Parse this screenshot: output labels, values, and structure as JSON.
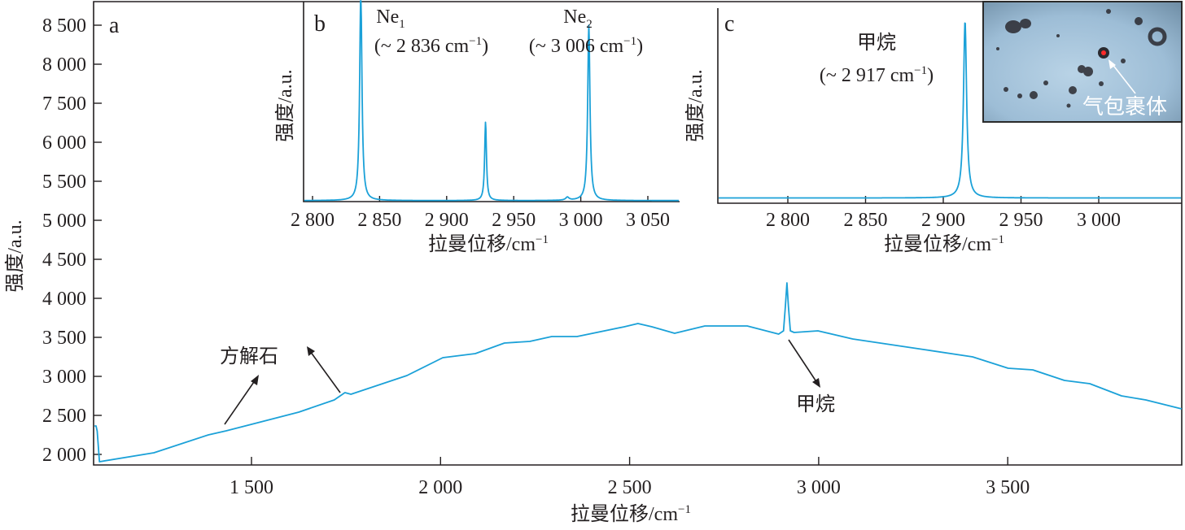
{
  "colors": {
    "series": "#1ba1d8",
    "axis": "#231f20",
    "photo_bg": "#9fbfd6",
    "inclusion_dot": "#ff2a2a"
  },
  "chart_data": [
    {
      "panel": "a",
      "type": "line",
      "xlabel": "拉曼位移/cm",
      "xlabel_sup": "−1",
      "ylabel": "强度/a.u.",
      "xlim": [
        1082,
        3962
      ],
      "xticks": [
        1500,
        2000,
        2500,
        3000,
        3500
      ],
      "xtick_labels": [
        "1 500",
        "2 000",
        "2 500",
        "3 000",
        "3 500"
      ],
      "ytick_labels": [
        "2 000",
        "2 500",
        "3 000",
        "3 500",
        "4 000",
        "4 500",
        "5 000",
        "5 500",
        "6 000",
        "7 500",
        "8 000",
        "8 500"
      ],
      "series": [
        {
          "name": "spectrum",
          "x": [
            1085,
            1089,
            1092,
            1098,
            1242,
            1386,
            1433,
            1500,
            1625,
            1719,
            1747,
            1763,
            1911,
            2006,
            2092,
            2169,
            2236,
            2294,
            2361,
            2486,
            2522,
            2559,
            2619,
            2699,
            2811,
            2894,
            2907,
            2912,
            2916,
            2920,
            2925,
            2935,
            2998,
            3090,
            3278,
            3407,
            3501,
            3566,
            3650,
            3717,
            3801,
            3865,
            3960
          ],
          "y": [
            2365,
            2365,
            2300,
            1906,
            2021,
            2250,
            2302,
            2385,
            2542,
            2698,
            2792,
            2771,
            3010,
            3240,
            3292,
            3427,
            3448,
            3510,
            3510,
            3635,
            3677,
            3635,
            3552,
            3646,
            3646,
            3542,
            3583,
            3900,
            4198,
            3900,
            3583,
            3563,
            3583,
            3479,
            3344,
            3250,
            3104,
            3083,
            2948,
            2906,
            2750,
            2698,
            2583
          ]
        }
      ],
      "annotations": [
        {
          "text": "方解石",
          "points_to": [
            1440,
            1750
          ]
        },
        {
          "text": "甲烷",
          "points_to": [
            2917
          ]
        }
      ]
    },
    {
      "panel": "b",
      "type": "line",
      "xlabel": "拉曼位移/cm",
      "xlabel_sup": "−1",
      "ylabel": "强度/a.u.",
      "xlim": [
        2793,
        3072
      ],
      "ylim": [
        0,
        1
      ],
      "xticks": [
        2800,
        2850,
        2900,
        2950,
        3000,
        3050
      ],
      "xtick_labels": [
        "2 800",
        "2 850",
        "2 900",
        "2 950",
        "3 000",
        "3 050"
      ],
      "baseline": 0.005,
      "peaks": [
        {
          "position": 2836,
          "intensity": 1.05,
          "hwhm": 1.0
        },
        {
          "position": 2929,
          "intensity": 0.39,
          "hwhm": 0.8
        },
        {
          "position": 2990,
          "intensity": 0.015,
          "hwhm": 1.5
        },
        {
          "position": 3006,
          "intensity": 0.87,
          "hwhm": 1.0
        }
      ],
      "labels": [
        {
          "name": "Ne",
          "sub": "1",
          "pre": "(~ 2 836 cm",
          "sup": "−1",
          "post": ")"
        },
        {
          "name": "Ne",
          "sub": "2",
          "pre": "(~ 3 006 cm",
          "sup": "−1",
          "post": ")"
        }
      ]
    },
    {
      "panel": "c",
      "type": "line",
      "xlabel": "拉曼位移/cm",
      "xlabel_sup": "−1",
      "ylabel": "强度/a.u.",
      "xlim": [
        2755,
        3053
      ],
      "ylim": [
        0,
        1
      ],
      "xticks": [
        2800,
        2850,
        2900,
        2950,
        3000
      ],
      "xtick_labels": [
        "2 800",
        "2 850",
        "2 900",
        "2 950",
        "3 000"
      ],
      "baseline": 0.02,
      "peaks": [
        {
          "position": 2914,
          "intensity": 0.98,
          "hwhm": 1.2
        }
      ],
      "labels": [
        {
          "name": "甲烷",
          "pre": "(~ 2 917 cm",
          "sup": "−1",
          "post": ")"
        }
      ]
    }
  ],
  "photo": {
    "label": "气包裹体"
  }
}
